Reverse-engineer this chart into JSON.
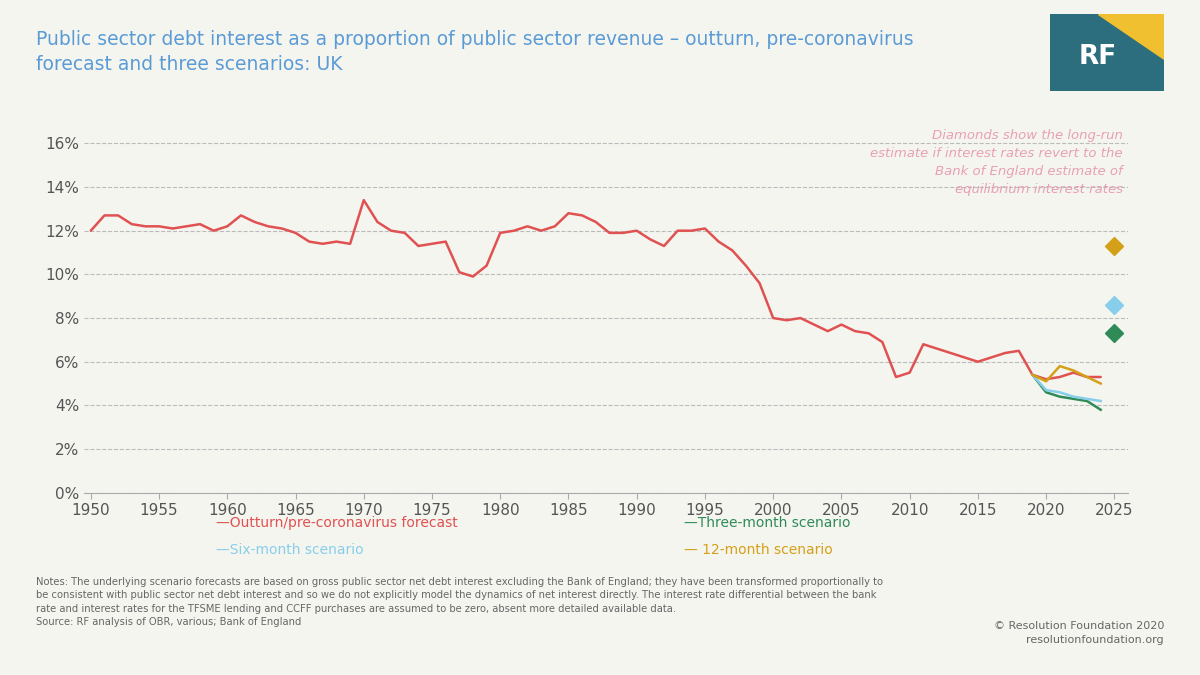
{
  "title": "Public sector debt interest as a proportion of public sector revenue – outturn, pre-coronavirus\nforecast and three scenarios: UK",
  "title_color": "#5b9bd5",
  "background_color": "#f5f5f0",
  "plot_bg_color": "#f5f5f0",
  "ylim": [
    0,
    0.17
  ],
  "yticks": [
    0,
    0.02,
    0.04,
    0.06,
    0.08,
    0.1,
    0.12,
    0.14,
    0.16
  ],
  "ytick_labels": [
    "0%",
    "2%",
    "4%",
    "6%",
    "8%",
    "10%",
    "12%",
    "14%",
    "16%"
  ],
  "xlim": [
    1949.5,
    2026
  ],
  "xticks": [
    1950,
    1955,
    1960,
    1965,
    1970,
    1975,
    1980,
    1985,
    1990,
    1995,
    2000,
    2005,
    2010,
    2015,
    2020,
    2025
  ],
  "grid_color": "#bbbbbb",
  "annotation_text": "Diamonds show the long-run\nestimate if interest rates revert to the\nBank of England estimate of\nequilibrium interest rates",
  "annotation_color": "#e8a0b4",
  "notes_text": "Notes: The underlying scenario forecasts are based on gross public sector net debt interest excluding the Bank of England; they have been transformed proportionally to\nbe consistent with public sector net debt interest and so we do not explicitly model the dynamics of net interest directly. The interest rate differential between the bank\nrate and interest rates for the TFSME lending and CCFF purchases are assumed to be zero, absent more detailed available data.\nSource: RF analysis of OBR, various; Bank of England",
  "copyright_text": "© Resolution Foundation 2020\nresolutionfoundation.org",
  "outturn_color": "#e05252",
  "three_month_color": "#2e8b57",
  "six_month_color": "#87ceeb",
  "twelve_month_color": "#d4a017",
  "diamond_three_month": [
    2025,
    0.073
  ],
  "diamond_six_month": [
    2025,
    0.086
  ],
  "diamond_twelve_month": [
    2025,
    0.113
  ],
  "outturn_x": [
    1950,
    1951,
    1952,
    1953,
    1954,
    1955,
    1956,
    1957,
    1958,
    1959,
    1960,
    1961,
    1962,
    1963,
    1964,
    1965,
    1966,
    1967,
    1968,
    1969,
    1970,
    1971,
    1972,
    1973,
    1974,
    1975,
    1976,
    1977,
    1978,
    1979,
    1980,
    1981,
    1982,
    1983,
    1984,
    1985,
    1986,
    1987,
    1988,
    1989,
    1990,
    1991,
    1992,
    1993,
    1994,
    1995,
    1996,
    1997,
    1998,
    1999,
    2000,
    2001,
    2002,
    2003,
    2004,
    2005,
    2006,
    2007,
    2008,
    2009,
    2010,
    2011,
    2012,
    2013,
    2014,
    2015,
    2016,
    2017,
    2018,
    2019,
    2020,
    2021,
    2022,
    2023,
    2024
  ],
  "outturn_y": [
    0.12,
    0.127,
    0.127,
    0.123,
    0.122,
    0.122,
    0.121,
    0.122,
    0.123,
    0.12,
    0.122,
    0.127,
    0.124,
    0.122,
    0.121,
    0.119,
    0.115,
    0.114,
    0.115,
    0.114,
    0.134,
    0.124,
    0.12,
    0.119,
    0.113,
    0.114,
    0.115,
    0.101,
    0.099,
    0.104,
    0.119,
    0.12,
    0.122,
    0.12,
    0.122,
    0.128,
    0.127,
    0.124,
    0.119,
    0.119,
    0.12,
    0.116,
    0.113,
    0.12,
    0.12,
    0.121,
    0.115,
    0.111,
    0.104,
    0.096,
    0.08,
    0.079,
    0.08,
    0.077,
    0.074,
    0.077,
    0.074,
    0.073,
    0.069,
    0.053,
    0.055,
    0.068,
    0.066,
    0.064,
    0.062,
    0.06,
    0.062,
    0.064,
    0.065,
    0.054,
    0.052,
    0.053,
    0.055,
    0.053,
    0.053
  ],
  "three_month_x": [
    2019,
    2020,
    2021,
    2022,
    2023,
    2024
  ],
  "three_month_y": [
    0.054,
    0.046,
    0.044,
    0.043,
    0.042,
    0.038
  ],
  "six_month_x": [
    2019,
    2020,
    2021,
    2022,
    2023,
    2024
  ],
  "six_month_y": [
    0.054,
    0.047,
    0.046,
    0.044,
    0.043,
    0.042
  ],
  "twelve_month_x": [
    2019,
    2020,
    2021,
    2022,
    2023,
    2024
  ],
  "twelve_month_y": [
    0.054,
    0.051,
    0.058,
    0.056,
    0.053,
    0.05
  ]
}
